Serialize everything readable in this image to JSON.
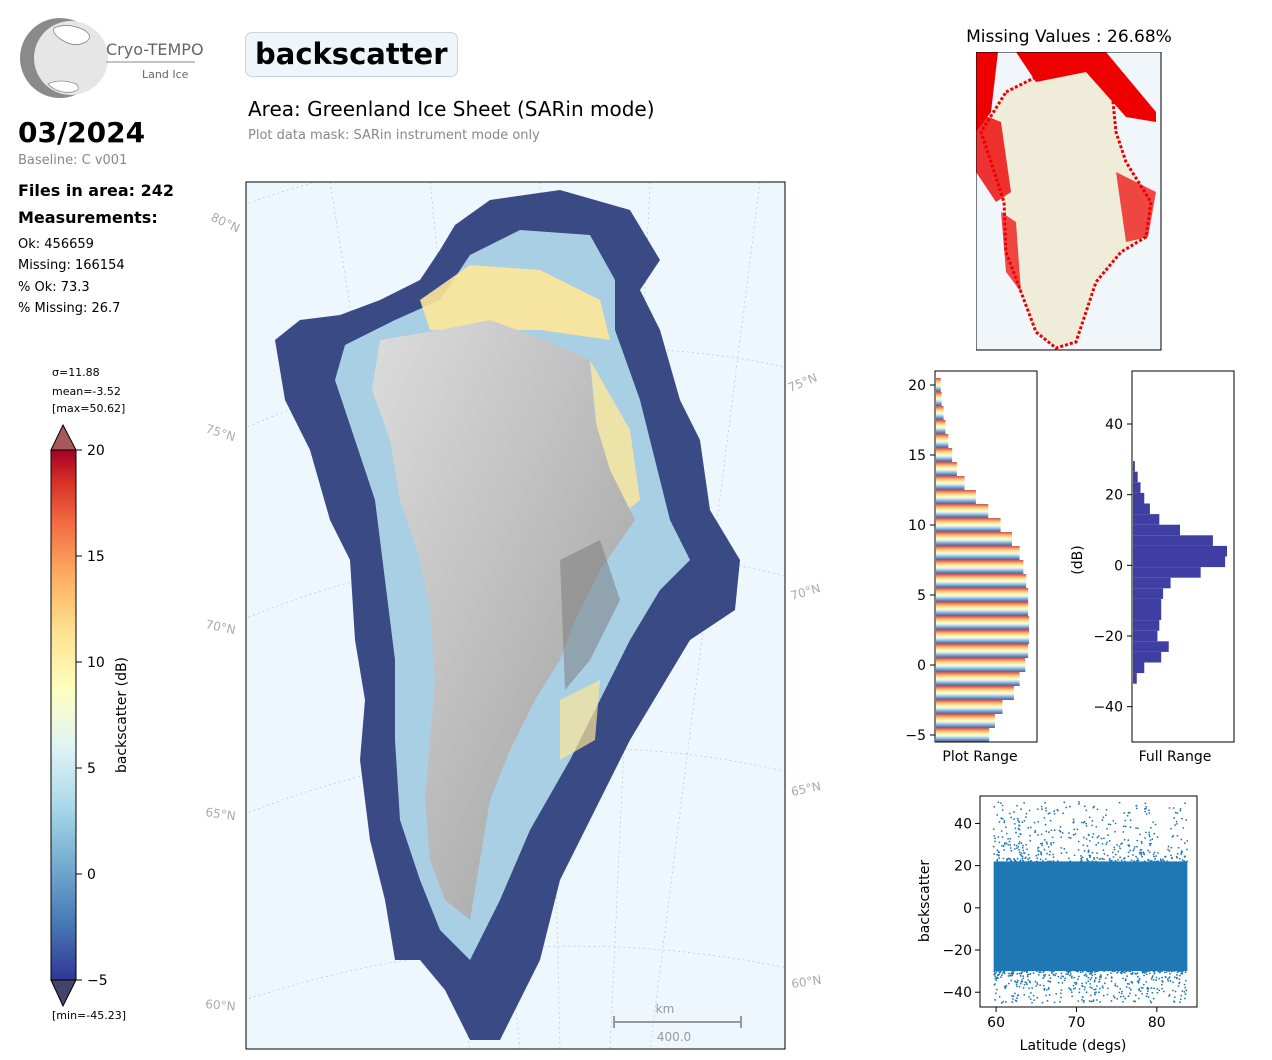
{
  "header": {
    "logo_name": "Cryo-TEMPO",
    "logo_sub": "Land Ice",
    "month": "03/2024",
    "baseline": "Baseline: C v001",
    "files": "Files in area: 242",
    "measurements_title": "Measurements:",
    "ok": "Ok: 456659",
    "missing": "Missing: 166154",
    "pct_ok": "% Ok: 73.3",
    "pct_missing": "% Missing: 26.7",
    "title": "backscatter",
    "area": "Area: Greenland Ice Sheet (SARin mode)",
    "mask": "Plot data mask: SARin instrument mode only"
  },
  "colorbar": {
    "sigma": "σ=11.88",
    "mean": "mean=-3.52",
    "max": "[max=50.62]",
    "min": "[min=-45.23]",
    "label": "backscatter (dB)",
    "ticks": [
      "20",
      "15",
      "10",
      "5",
      "0",
      "−5"
    ]
  },
  "map": {
    "lat_labels_left": [
      "80°N",
      "75°N",
      "70°N",
      "65°N",
      "60°N"
    ],
    "lat_labels_right": [
      "75°N",
      "70°N",
      "65°N",
      "60°N"
    ],
    "scale_unit": "km",
    "scale_value": "400.0",
    "colors": {
      "ocean": "#eef7fd",
      "high": "#3a4a85",
      "low": "#f4f0e4"
    }
  },
  "missing_map": {
    "title": "Missing Values : 26.68%",
    "color": "#ee0000"
  },
  "chart_data": [
    {
      "type": "bar",
      "orientation": "horizontal",
      "title": "",
      "xlabel": "Plot Range",
      "ylabel": "",
      "ylim": [
        -5.5,
        21
      ],
      "yticks": [
        "20",
        "15",
        "10",
        "5",
        "0",
        "−5"
      ],
      "bin_centers": [
        20,
        19,
        18,
        17,
        16,
        15,
        14,
        13,
        12,
        11,
        10,
        9,
        8,
        7,
        6,
        5,
        4,
        3,
        2,
        1,
        0,
        -1,
        -2,
        -3,
        -4,
        -5
      ],
      "counts": [
        0.05,
        0.06,
        0.08,
        0.1,
        0.13,
        0.17,
        0.22,
        0.3,
        0.42,
        0.55,
        0.68,
        0.8,
        0.88,
        0.92,
        0.95,
        0.97,
        0.97,
        0.98,
        0.98,
        0.97,
        0.94,
        0.88,
        0.82,
        0.7,
        0.62,
        0.56
      ]
    },
    {
      "type": "bar",
      "orientation": "horizontal",
      "title": "",
      "xlabel": "Full Range",
      "ylabel": "(dB)",
      "ylim": [
        -50,
        55
      ],
      "yticks": [
        "40",
        "20",
        "0",
        "−20",
        "−40"
      ],
      "bin_centers": [
        28,
        25,
        22,
        19,
        16,
        13,
        10,
        7,
        4,
        1,
        -2,
        -5,
        -8,
        -11,
        -14,
        -17,
        -20,
        -23,
        -26,
        -29,
        -32
      ],
      "counts": [
        0.02,
        0.05,
        0.08,
        0.12,
        0.18,
        0.28,
        0.5,
        0.85,
        1.0,
        0.98,
        0.72,
        0.4,
        0.32,
        0.3,
        0.3,
        0.28,
        0.26,
        0.38,
        0.3,
        0.12,
        0.04
      ]
    },
    {
      "type": "scatter",
      "title": "",
      "xlabel": "Latitude (degs)",
      "ylabel": "backscatter",
      "xlim": [
        58,
        85
      ],
      "ylim": [
        -47,
        53
      ],
      "xticks": [
        "60",
        "70",
        "80"
      ],
      "yticks": [
        "40",
        "20",
        "0",
        "−20",
        "−40"
      ],
      "x_range": [
        59.7,
        83.8
      ],
      "y_core": [
        -30,
        22
      ],
      "y_extreme": [
        -45.23,
        50.62
      ],
      "color": "#1f77b4"
    }
  ]
}
